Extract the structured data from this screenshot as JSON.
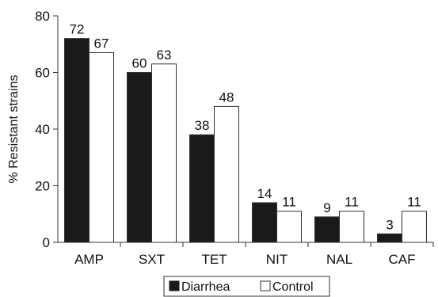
{
  "chart_data": {
    "type": "bar",
    "title": "",
    "xlabel": "",
    "ylabel": "% Resistant strains",
    "ylim": [
      0,
      80
    ],
    "yticks": [
      0,
      20,
      40,
      60,
      80
    ],
    "grid": false,
    "legend_position": "bottom",
    "categories": [
      "AMP",
      "SXT",
      "TET",
      "NIT",
      "NAL",
      "CAF"
    ],
    "series": [
      {
        "name": "Diarrhea",
        "values": [
          72,
          60,
          38,
          14,
          9,
          3
        ],
        "color": "#1a1a1a"
      },
      {
        "name": "Control",
        "values": [
          67,
          63,
          48,
          11,
          11,
          11
        ],
        "color": "#ffffff"
      }
    ]
  }
}
